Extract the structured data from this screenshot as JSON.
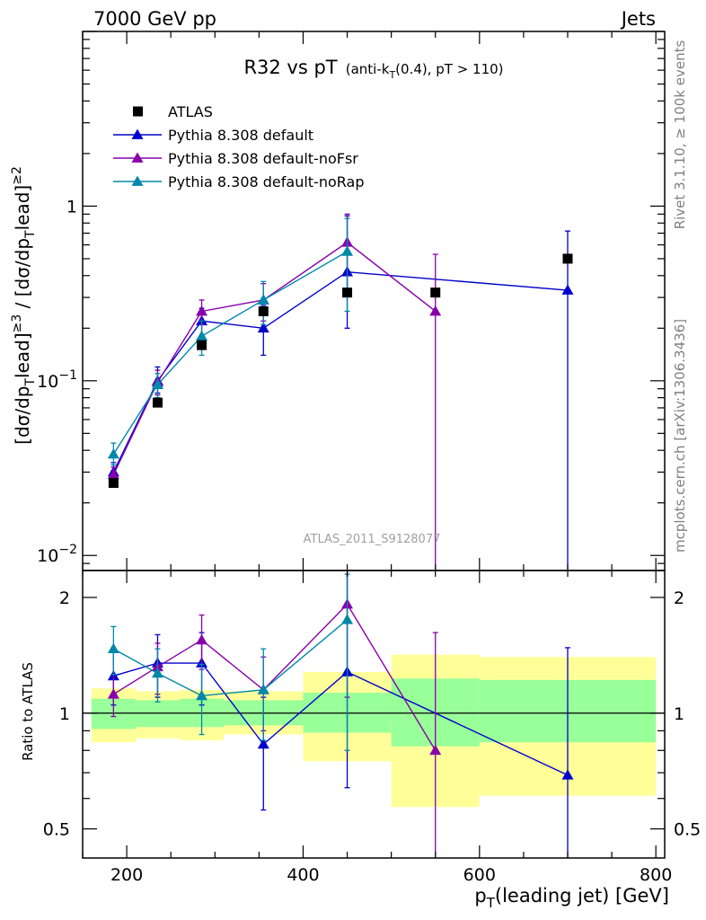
{
  "header": {
    "left": "7000 GeV pp",
    "right": "Jets"
  },
  "title": {
    "main": "R32 vs pT",
    "sub_prefix": "(anti-k",
    "sub_sub": "T",
    "sub_suffix": "(0.4), pT > 110)"
  },
  "side_text": {
    "rivet": "Rivet 3.1.10, ≥ 100k events",
    "mcplots": "mcplots.cern.ch [arXiv:1306.3436]"
  },
  "watermark": "ATLAS_2011_S9128077",
  "chart_data": {
    "type": "scatter",
    "x_unit": "GeV",
    "xlabel": {
      "p": "p",
      "sub": "T",
      "rest": "(leading jet) [GeV]"
    },
    "xlim": [
      150,
      810
    ],
    "x_ticks": [
      200,
      400,
      600,
      800
    ],
    "x_tick_labels": [
      "200",
      "400",
      "600",
      "800"
    ],
    "main": {
      "yscale": "log",
      "ylim": [
        0.0082,
        10
      ],
      "y_ticks": [
        {
          "value": 1,
          "label": "1"
        },
        {
          "value": 0.1,
          "label": "10",
          "sup": "−1"
        },
        {
          "value": 0.01,
          "label": "10",
          "sup": "−2"
        }
      ],
      "ylabel": "[dσ/dpᵀlead]≥3 / [dσ/dpᵀlead]≥2"
    },
    "ratio": {
      "yscale": "log",
      "ylim": [
        0.42,
        2.35
      ],
      "y_ticks": [
        {
          "value": 0.5,
          "label": "0.5"
        },
        {
          "value": 1,
          "label": "1"
        },
        {
          "value": 2,
          "label": "2"
        }
      ],
      "ylabel": "Ratio to ATLAS"
    },
    "data": {
      "name": "ATLAS",
      "color": "#000000",
      "marker": "square",
      "points": [
        {
          "x": 185,
          "y": 0.026
        },
        {
          "x": 235,
          "y": 0.075
        },
        {
          "x": 285,
          "y": 0.16
        },
        {
          "x": 355,
          "y": 0.25
        },
        {
          "x": 450,
          "y": 0.32
        },
        {
          "x": 550,
          "y": 0.32
        },
        {
          "x": 700,
          "y": 0.5
        }
      ],
      "bins": [
        {
          "lo": 160,
          "hi": 210,
          "inner": [
            0.91,
            1.09
          ],
          "outer": [
            0.84,
            1.16
          ]
        },
        {
          "lo": 210,
          "hi": 260,
          "inner": [
            0.92,
            1.08
          ],
          "outer": [
            0.86,
            1.14
          ]
        },
        {
          "lo": 260,
          "hi": 310,
          "inner": [
            0.92,
            1.09
          ],
          "outer": [
            0.85,
            1.15
          ]
        },
        {
          "lo": 310,
          "hi": 400,
          "inner": [
            0.93,
            1.08
          ],
          "outer": [
            0.88,
            1.14
          ]
        },
        {
          "lo": 400,
          "hi": 500,
          "inner": [
            0.89,
            1.13
          ],
          "outer": [
            0.75,
            1.28
          ]
        },
        {
          "lo": 500,
          "hi": 600,
          "inner": [
            0.82,
            1.23
          ],
          "outer": [
            0.57,
            1.42
          ]
        },
        {
          "lo": 600,
          "hi": 800,
          "inner": [
            0.84,
            1.22
          ],
          "outer": [
            0.61,
            1.4
          ]
        }
      ]
    },
    "series": [
      {
        "name": "Pythia 8.308 default",
        "color": "#0000cc",
        "points": [
          {
            "x": 185,
            "y": 0.03,
            "lo": 0.027,
            "hi": 0.034,
            "r": 1.25,
            "rlo": 1.05,
            "rhi": 1.45
          },
          {
            "x": 235,
            "y": 0.1,
            "lo": 0.085,
            "hi": 0.12,
            "r": 1.35,
            "rlo": 1.1,
            "rhi": 1.6
          },
          {
            "x": 285,
            "y": 0.22,
            "lo": 0.18,
            "hi": 0.26,
            "r": 1.35,
            "rlo": 1.05,
            "rhi": 1.62
          },
          {
            "x": 355,
            "y": 0.2,
            "lo": 0.14,
            "hi": 0.27,
            "r": 0.83,
            "rlo": 0.56,
            "rhi": 1.1
          },
          {
            "x": 450,
            "y": 0.42,
            "lo": 0.2,
            "hi": 0.88,
            "r": 1.28,
            "rlo": 0.64,
            "rhi": 2.35
          },
          {
            "x": 700,
            "y": 0.33,
            "lo": 0.0001,
            "hi": 0.72,
            "r": 0.69,
            "rlo": 0.01,
            "rhi": 1.48
          }
        ]
      },
      {
        "name": "Pythia 8.308 default-noFsr",
        "color": "#8800aa",
        "points": [
          {
            "x": 185,
            "y": 0.029,
            "lo": 0.026,
            "hi": 0.032,
            "r": 1.12,
            "rlo": 0.98,
            "rhi": 1.26
          },
          {
            "x": 235,
            "y": 0.098,
            "lo": 0.083,
            "hi": 0.115,
            "r": 1.32,
            "rlo": 1.12,
            "rhi": 1.52
          },
          {
            "x": 285,
            "y": 0.25,
            "lo": 0.21,
            "hi": 0.29,
            "r": 1.55,
            "rlo": 1.3,
            "rhi": 1.8
          },
          {
            "x": 355,
            "y": 0.29,
            "lo": 0.22,
            "hi": 0.36,
            "r": 1.15,
            "rlo": 0.9,
            "rhi": 1.4
          },
          {
            "x": 450,
            "y": 0.62,
            "lo": 0.33,
            "hi": 0.9,
            "r": 1.92,
            "rlo": 1.1,
            "rhi": 2.35
          },
          {
            "x": 550,
            "y": 0.25,
            "lo": 0.0001,
            "hi": 0.53,
            "r": 0.8,
            "rlo": 0.01,
            "rhi": 1.62
          }
        ]
      },
      {
        "name": "Pythia 8.308 default-noRap",
        "color": "#0088aa",
        "points": [
          {
            "x": 185,
            "y": 0.038,
            "lo": 0.033,
            "hi": 0.044,
            "r": 1.47,
            "rlo": 1.26,
            "rhi": 1.68
          },
          {
            "x": 235,
            "y": 0.095,
            "lo": 0.08,
            "hi": 0.11,
            "r": 1.27,
            "rlo": 1.07,
            "rhi": 1.47
          },
          {
            "x": 285,
            "y": 0.18,
            "lo": 0.14,
            "hi": 0.22,
            "r": 1.11,
            "rlo": 0.88,
            "rhi": 1.34
          },
          {
            "x": 355,
            "y": 0.29,
            "lo": 0.21,
            "hi": 0.37,
            "r": 1.15,
            "rlo": 0.85,
            "rhi": 1.47
          },
          {
            "x": 450,
            "y": 0.55,
            "lo": 0.25,
            "hi": 0.85,
            "r": 1.75,
            "rlo": 0.8,
            "rhi": 2.3
          }
        ]
      }
    ],
    "bands": {
      "inner_color": "#99ff99",
      "outer_color": "#ffff99"
    }
  }
}
